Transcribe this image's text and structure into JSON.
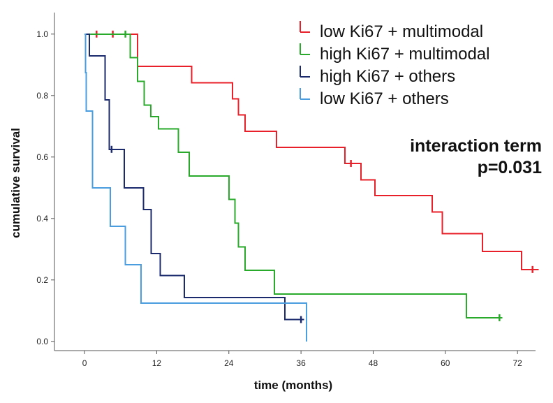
{
  "chart_data": {
    "type": "line",
    "subtype": "kaplan-meier step",
    "title": "",
    "xlabel": "time (months)",
    "ylabel": "cumulative survival",
    "xlim": [
      -5,
      75
    ],
    "ylim": [
      -0.03,
      1.07
    ],
    "xticks": [
      0,
      12,
      24,
      36,
      48,
      60,
      72
    ],
    "yticks": [
      0.0,
      0.2,
      0.4,
      0.6,
      0.8,
      1.0
    ],
    "ytick_labels": [
      "0.0",
      "0.2",
      "0.4",
      "0.6",
      "0.8",
      "1.0"
    ],
    "legend_position": "top-right",
    "annotation": {
      "line1": "interaction term",
      "line2": "p=0.031"
    },
    "series": [
      {
        "name": "low Ki67 + multimodal",
        "color": "#e8202a",
        "x": [
          0,
          8.8,
          17.8,
          24.6,
          25.6,
          26.7,
          31.9,
          43.3,
          46.0,
          48.3,
          57.8,
          59.5,
          66.2,
          72.7,
          75.5
        ],
        "y": [
          1.0,
          0.895,
          0.842,
          0.789,
          0.737,
          0.684,
          0.631,
          0.579,
          0.526,
          0.474,
          0.421,
          0.351,
          0.293,
          0.234,
          0.234
        ],
        "censored": [
          [
            2.0,
            1.0
          ],
          [
            4.7,
            1.0
          ],
          [
            44.3,
            0.579
          ],
          [
            74.5,
            0.234
          ]
        ]
      },
      {
        "name": "high Ki67 + multimodal",
        "color": "#2aaa2a",
        "x": [
          0,
          7.6,
          8.8,
          9.9,
          11.0,
          12.3,
          15.6,
          17.4,
          24.0,
          25.0,
          25.6,
          26.7,
          31.6,
          63.5,
          69.5
        ],
        "y": [
          1.0,
          0.923,
          0.846,
          0.769,
          0.731,
          0.692,
          0.615,
          0.538,
          0.462,
          0.385,
          0.308,
          0.231,
          0.154,
          0.077,
          0.077
        ],
        "censored": [
          [
            6.8,
            1.0
          ],
          [
            69.0,
            0.077
          ]
        ]
      },
      {
        "name": "high Ki67 + others",
        "color": "#1a2a6c",
        "x": [
          0,
          0.8,
          3.4,
          4.1,
          6.6,
          9.8,
          11.1,
          12.6,
          16.6,
          33.3,
          36.5
        ],
        "y": [
          1.0,
          0.929,
          0.786,
          0.625,
          0.5,
          0.429,
          0.286,
          0.214,
          0.143,
          0.071,
          0.071
        ],
        "censored": [
          [
            4.5,
            0.625
          ],
          [
            36.0,
            0.071
          ]
        ]
      },
      {
        "name": "low Ki67 + others",
        "color": "#4a9ee0",
        "x": [
          0,
          0.15,
          0.3,
          1.3,
          4.3,
          6.8,
          9.4,
          36.9,
          36.9
        ],
        "y": [
          1.0,
          0.875,
          0.75,
          0.5,
          0.375,
          0.25,
          0.125,
          0.125,
          0.0
        ],
        "censored": []
      }
    ]
  }
}
